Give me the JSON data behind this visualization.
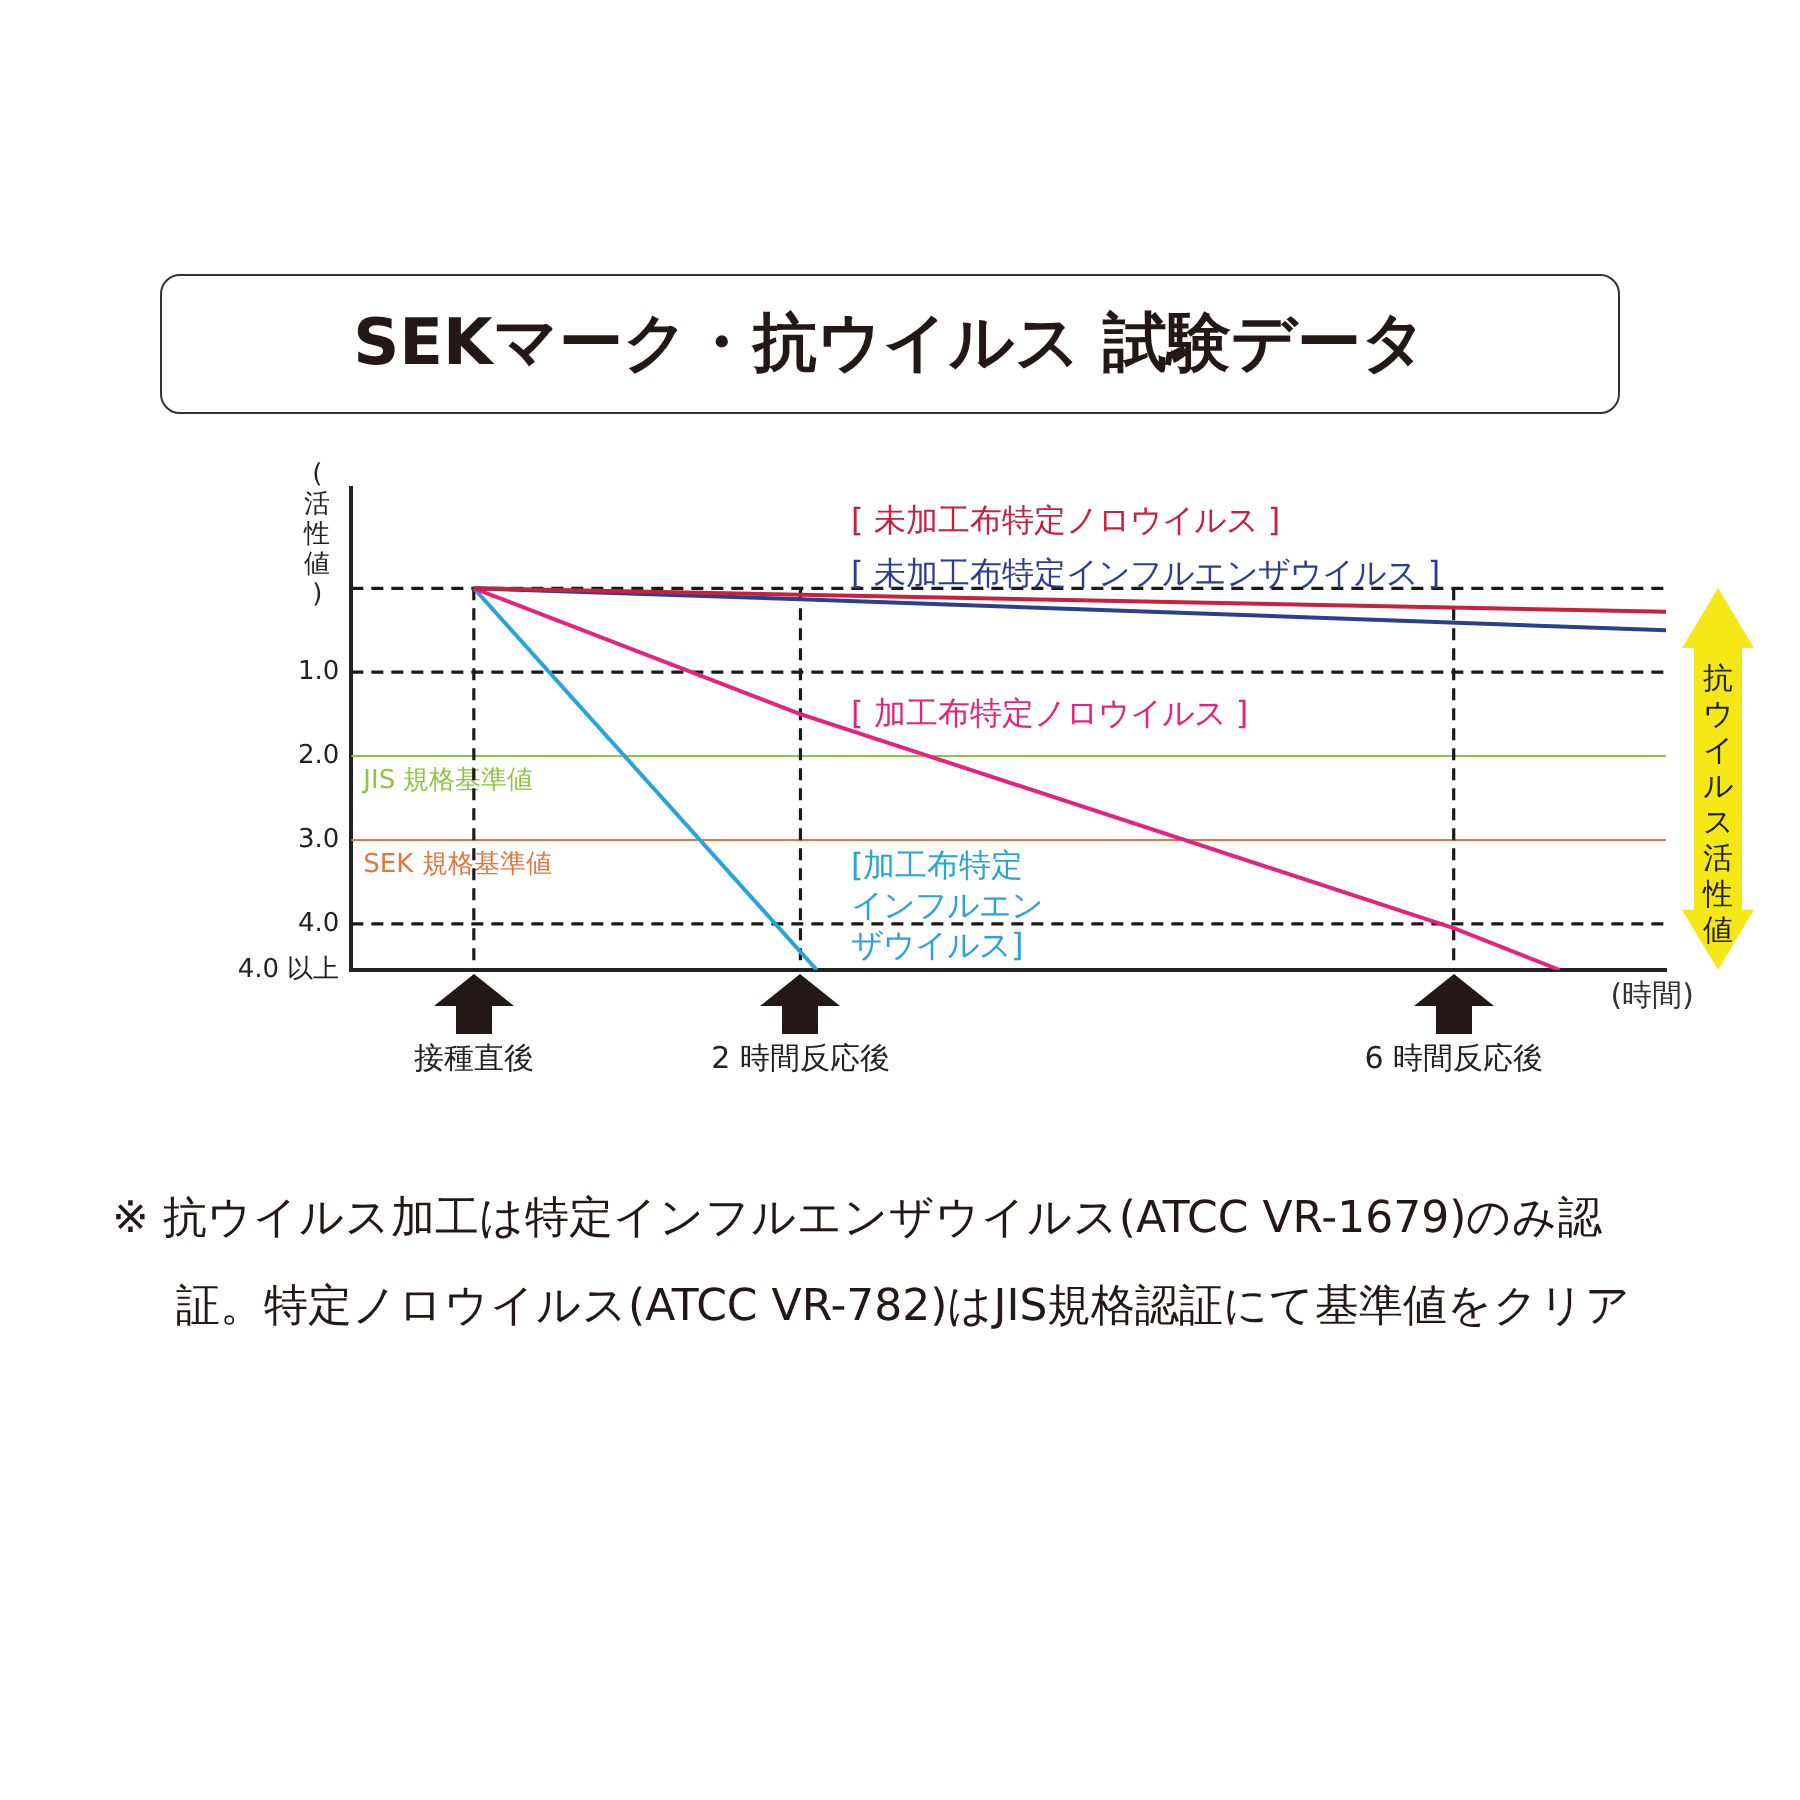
{
  "chart_data": {
    "type": "line",
    "title": "SEKマーク・抗ウイルス 試験データ",
    "ylabel": "(活性値)",
    "xlabel": "(時間)",
    "xlim": [
      -0.75,
      7.3
    ],
    "xticks": [
      {
        "value": 0,
        "label": "接種直後"
      },
      {
        "value": 2,
        "label": "2 時間反応後"
      },
      {
        "value": 6,
        "label": "6 時間反応後"
      }
    ],
    "ylim": [
      4.55,
      -1.2
    ],
    "yticks": [
      {
        "value": 0,
        "label": null
      },
      {
        "value": 1,
        "label": "1.0"
      },
      {
        "value": 2,
        "label": "2.0"
      },
      {
        "value": 3,
        "label": "3.0"
      },
      {
        "value": 4,
        "label": "4.0"
      }
    ],
    "series": [
      {
        "name": "[ 未加工布特定ノロウイルス ]",
        "color": "#c8213f",
        "x": [
          0,
          7.3
        ],
        "values": [
          0,
          0.28
        ]
      },
      {
        "name": "[ 未加工布特定インフルエンザウイルス ]",
        "color": "#2b3f8e",
        "x": [
          0,
          2,
          7.3
        ],
        "values": [
          0,
          0.13,
          0.5
        ]
      },
      {
        "name": "[ 加工布特定ノロウイルス ]",
        "color": "#e3237d",
        "x": [
          0,
          2,
          6,
          6.65
        ],
        "values": [
          0,
          1.5,
          4.05,
          4.55
        ]
      },
      {
        "name": "[加工布特定インフルエンザウイルス]",
        "color": "#29a3db",
        "x": [
          0,
          2.1
        ],
        "values": [
          0,
          4.55
        ]
      }
    ],
    "ref_lines": [
      {
        "axis": "y",
        "value": 0,
        "label": null,
        "color": "#1a1a1a",
        "line_style": "dashed"
      },
      {
        "axis": "y",
        "value": 1,
        "label": null,
        "color": "#1a1a1a",
        "line_style": "dashed"
      },
      {
        "axis": "y",
        "value": 4,
        "label": null,
        "color": "#1a1a1a",
        "line_style": "dashed"
      },
      {
        "axis": "y",
        "value": 2,
        "label": "JIS 規格基準値",
        "color": "#8cc63f",
        "line_style": "solid"
      },
      {
        "axis": "y",
        "value": 3,
        "label": "SEK 規格基準値",
        "color": "#e8743b",
        "line_style": "solid"
      },
      {
        "axis": "x",
        "value": 0,
        "label": null,
        "color": "#1a1a1a",
        "line_style": "dashed"
      },
      {
        "axis": "x",
        "value": 2,
        "label": null,
        "color": "#1a1a1a",
        "line_style": "dashed"
      },
      {
        "axis": "x",
        "value": 6,
        "label": null,
        "color": "#1a1a1a",
        "line_style": "dashed"
      }
    ],
    "annotations": [
      "抗ウイルス活性値",
      "※ 抗ウイルス加工は特定インフルエンザウイルス(ATCC VR-1679)のみ認証。特定ノロウイルス(ATCC VR-782)はJIS規格認証にて基準値をクリア",
      "4.0 以上"
    ],
    "grid": false,
    "legend": false,
    "marker": "none",
    "line_style": "solid"
  }
}
